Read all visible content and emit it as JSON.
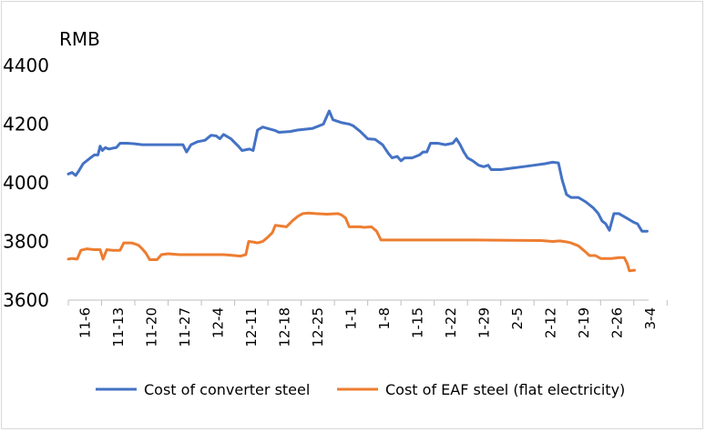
{
  "chart_data": {
    "type": "line",
    "title": "",
    "ylabel": "RMB",
    "xlabel": "",
    "ylim": [
      3600,
      4400
    ],
    "yticks": [
      3600,
      3800,
      4000,
      4200,
      4400
    ],
    "grid": false,
    "legend_position": "bottom",
    "x_tick_labels": [
      "11-6",
      "11-13",
      "11-20",
      "11-27",
      "12-4",
      "12-11",
      "12-18",
      "12-25",
      "1-1",
      "1-8",
      "1-15",
      "1-22",
      "1-29",
      "2-5",
      "2-12",
      "2-19",
      "2-26",
      "3-4"
    ],
    "series": [
      {
        "name": "Cost of converter steel",
        "color": "#4472C4",
        "points": [
          [
            0.0,
            4030
          ],
          [
            0.5,
            4035
          ],
          [
            1.0,
            4025
          ],
          [
            1.4,
            4040
          ],
          [
            2.0,
            4065
          ],
          [
            3.0,
            4085
          ],
          [
            3.5,
            4095
          ],
          [
            4.0,
            4095
          ],
          [
            4.3,
            4125
          ],
          [
            4.6,
            4110
          ],
          [
            5.0,
            4120
          ],
          [
            5.5,
            4115
          ],
          [
            6.0,
            4118
          ],
          [
            6.5,
            4120
          ],
          [
            7.0,
            4135
          ],
          [
            8.0,
            4135
          ],
          [
            9.0,
            4133
          ],
          [
            10.0,
            4130
          ],
          [
            12.0,
            4130
          ],
          [
            14.0,
            4130
          ],
          [
            15.5,
            4130
          ],
          [
            16.0,
            4105
          ],
          [
            16.6,
            4130
          ],
          [
            17.5,
            4140
          ],
          [
            18.5,
            4145
          ],
          [
            19.3,
            4162
          ],
          [
            20.0,
            4160
          ],
          [
            20.5,
            4150
          ],
          [
            21.0,
            4165
          ],
          [
            22.0,
            4150
          ],
          [
            23.0,
            4125
          ],
          [
            23.5,
            4110
          ],
          [
            24.5,
            4115
          ],
          [
            25.0,
            4110
          ],
          [
            25.6,
            4180
          ],
          [
            26.3,
            4190
          ],
          [
            27.0,
            4185
          ],
          [
            28.0,
            4178
          ],
          [
            28.5,
            4172
          ],
          [
            30.0,
            4175
          ],
          [
            31.0,
            4180
          ],
          [
            33.0,
            4185
          ],
          [
            34.5,
            4200
          ],
          [
            35.3,
            4245
          ],
          [
            35.8,
            4215
          ],
          [
            37.0,
            4205
          ],
          [
            38.0,
            4200
          ],
          [
            38.5,
            4195
          ],
          [
            39.5,
            4175
          ],
          [
            40.5,
            4150
          ],
          [
            41.5,
            4148
          ],
          [
            42.5,
            4130
          ],
          [
            43.3,
            4100
          ],
          [
            43.8,
            4085
          ],
          [
            44.5,
            4090
          ],
          [
            45.0,
            4075
          ],
          [
            45.5,
            4085
          ],
          [
            46.5,
            4085
          ],
          [
            47.5,
            4095
          ],
          [
            48.0,
            4105
          ],
          [
            48.5,
            4105
          ],
          [
            49.0,
            4135
          ],
          [
            50.0,
            4135
          ],
          [
            51.0,
            4130
          ],
          [
            52.0,
            4135
          ],
          [
            52.5,
            4150
          ],
          [
            53.0,
            4130
          ],
          [
            53.5,
            4105
          ],
          [
            54.0,
            4085
          ],
          [
            54.7,
            4075
          ],
          [
            55.5,
            4060
          ],
          [
            56.2,
            4055
          ],
          [
            56.8,
            4060
          ],
          [
            57.2,
            4045
          ],
          [
            58.5,
            4045
          ],
          [
            60.0,
            4050
          ],
          [
            61.5,
            4055
          ],
          [
            63.0,
            4060
          ],
          [
            64.5,
            4065
          ],
          [
            65.5,
            4070
          ],
          [
            66.3,
            4068
          ],
          [
            66.8,
            4010
          ],
          [
            67.4,
            3960
          ],
          [
            68.0,
            3950
          ],
          [
            69.0,
            3950
          ],
          [
            70.0,
            3935
          ],
          [
            71.0,
            3915
          ],
          [
            71.7,
            3895
          ],
          [
            72.2,
            3870
          ],
          [
            72.7,
            3860
          ],
          [
            73.2,
            3838
          ],
          [
            73.8,
            3895
          ],
          [
            74.5,
            3895
          ],
          [
            75.5,
            3880
          ],
          [
            76.5,
            3865
          ],
          [
            77.0,
            3860
          ],
          [
            77.6,
            3835
          ],
          [
            78.3,
            3835
          ]
        ]
      },
      {
        "name": "Cost of EAF steel (flat electricity)",
        "color": "#ED7D31",
        "points": [
          [
            0.0,
            3740
          ],
          [
            0.5,
            3742
          ],
          [
            1.2,
            3740
          ],
          [
            1.7,
            3770
          ],
          [
            2.5,
            3775
          ],
          [
            3.5,
            3772
          ],
          [
            4.3,
            3772
          ],
          [
            4.7,
            3740
          ],
          [
            5.2,
            3772
          ],
          [
            6.0,
            3770
          ],
          [
            7.0,
            3770
          ],
          [
            7.5,
            3795
          ],
          [
            8.5,
            3795
          ],
          [
            9.0,
            3792
          ],
          [
            9.5,
            3787
          ],
          [
            10.0,
            3775
          ],
          [
            10.5,
            3760
          ],
          [
            11.0,
            3738
          ],
          [
            12.0,
            3738
          ],
          [
            12.6,
            3755
          ],
          [
            13.5,
            3758
          ],
          [
            15.0,
            3755
          ],
          [
            17.0,
            3755
          ],
          [
            19.0,
            3755
          ],
          [
            21.0,
            3755
          ],
          [
            22.5,
            3752
          ],
          [
            23.3,
            3750
          ],
          [
            24.0,
            3755
          ],
          [
            24.4,
            3800
          ],
          [
            25.0,
            3798
          ],
          [
            25.6,
            3795
          ],
          [
            26.3,
            3800
          ],
          [
            27.0,
            3815
          ],
          [
            27.6,
            3830
          ],
          [
            28.0,
            3855
          ],
          [
            28.6,
            3853
          ],
          [
            29.5,
            3850
          ],
          [
            30.3,
            3870
          ],
          [
            31.0,
            3885
          ],
          [
            31.7,
            3895
          ],
          [
            32.5,
            3897
          ],
          [
            33.5,
            3895
          ],
          [
            35.0,
            3893
          ],
          [
            36.5,
            3895
          ],
          [
            37.0,
            3890
          ],
          [
            37.5,
            3880
          ],
          [
            38.0,
            3850
          ],
          [
            38.7,
            3850
          ],
          [
            39.5,
            3850
          ],
          [
            40.0,
            3848
          ],
          [
            41.0,
            3850
          ],
          [
            41.7,
            3835
          ],
          [
            42.3,
            3805
          ],
          [
            44.0,
            3805
          ],
          [
            47.0,
            3805
          ],
          [
            50.0,
            3805
          ],
          [
            55.0,
            3805
          ],
          [
            60.0,
            3804
          ],
          [
            64.0,
            3803
          ],
          [
            65.5,
            3800
          ],
          [
            66.5,
            3802
          ],
          [
            67.5,
            3798
          ],
          [
            68.0,
            3795
          ],
          [
            69.0,
            3785
          ],
          [
            69.8,
            3768
          ],
          [
            70.5,
            3752
          ],
          [
            71.3,
            3752
          ],
          [
            72.0,
            3742
          ],
          [
            73.5,
            3742
          ],
          [
            74.5,
            3745
          ],
          [
            75.2,
            3745
          ],
          [
            75.6,
            3725
          ],
          [
            75.9,
            3700
          ],
          [
            76.6,
            3702
          ]
        ]
      }
    ]
  }
}
